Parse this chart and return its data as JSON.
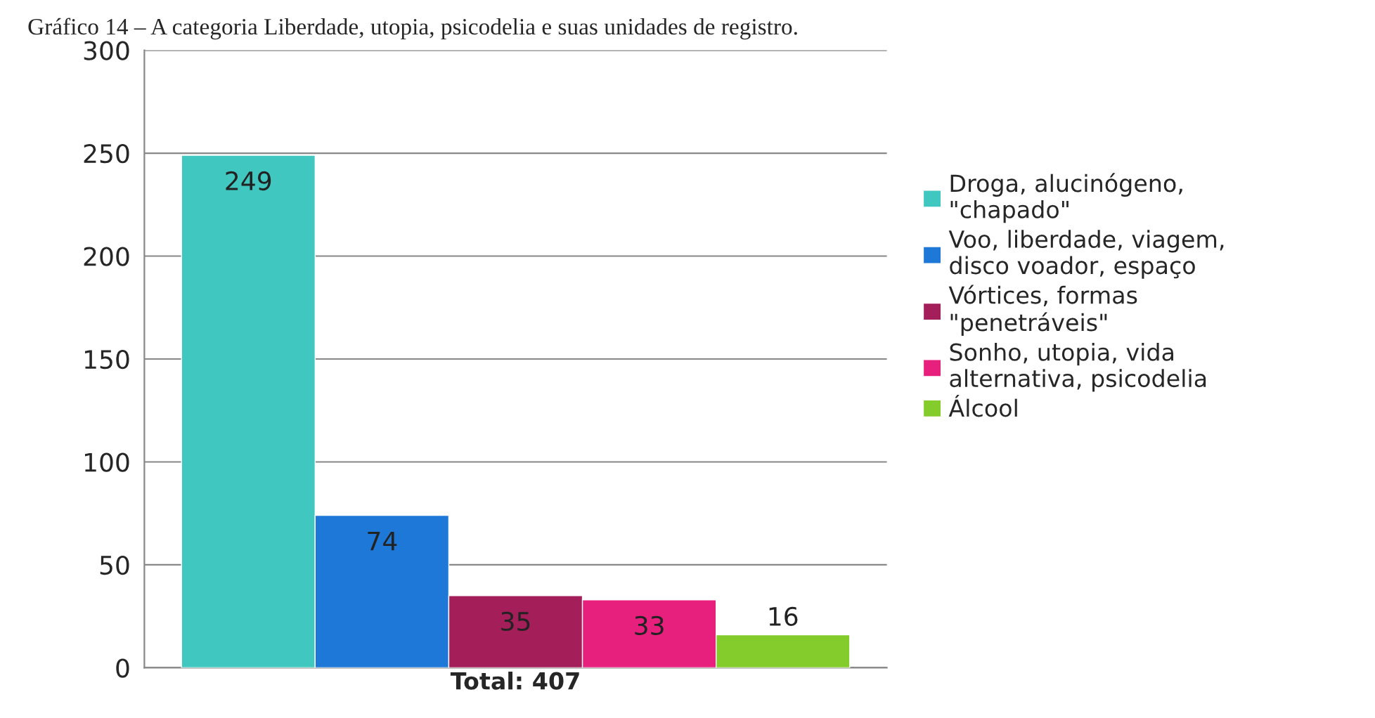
{
  "chart_data": {
    "type": "bar",
    "title": "Gráfico 14 – A categoria Liberdade, utopia, psicodelia e suas unidades de registro.",
    "categories": [
      "Total: 407"
    ],
    "series": [
      {
        "name": "Droga, alucinógeno, \"chapado\"",
        "color": "#40c8c0",
        "values": [
          249
        ]
      },
      {
        "name": "Voo, liberdade, viagem, disco voador, espaço",
        "color": "#1e78d8",
        "values": [
          74
        ]
      },
      {
        "name": "Vórtices, formas \"penetráveis\"",
        "color": "#a41e5a",
        "values": [
          35
        ]
      },
      {
        "name": "Sonho, utopia, vida alternativa, psicodelia",
        "color": "#e6207c",
        "values": [
          33
        ]
      },
      {
        "name": "Álcool",
        "color": "#84cc2c",
        "values": [
          16
        ]
      }
    ],
    "ylim": [
      0,
      300
    ],
    "yticks": [
      0,
      50,
      100,
      150,
      200,
      250,
      300
    ],
    "grid": "y",
    "legend": "right",
    "data_labels": true
  }
}
